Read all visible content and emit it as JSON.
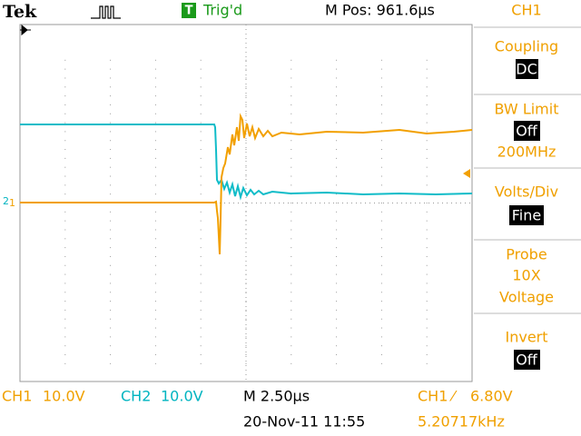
{
  "header": {
    "brand": "Tek",
    "trigger_icon": "T",
    "trigger_status": "Trig'd",
    "position": "M Pos: 961.6µs",
    "channel": "CH1"
  },
  "menu": {
    "coupling": {
      "title": "Coupling",
      "value": "DC"
    },
    "bw_limit": {
      "title": "BW Limit",
      "value": "Off",
      "note": "200MHz"
    },
    "volts_div": {
      "title": "Volts/Div",
      "value": "Fine"
    },
    "probe": {
      "title": "Probe",
      "value": "10X",
      "note": "Voltage"
    },
    "invert": {
      "title": "Invert",
      "value": "Off"
    }
  },
  "markers": {
    "ch2": "2",
    "ch1": "1"
  },
  "footer": {
    "ch1": "CH1",
    "ch1_scale": "10.0V",
    "ch2": "CH2",
    "ch2_scale": "10.0V",
    "timebase": "M 2.50µs",
    "trigger_source": "CH1",
    "trigger_slope": "⁄",
    "trigger_level": "6.80V",
    "date": "20-Nov-11 11:55",
    "frequency": "5.20717kHz"
  }
}
